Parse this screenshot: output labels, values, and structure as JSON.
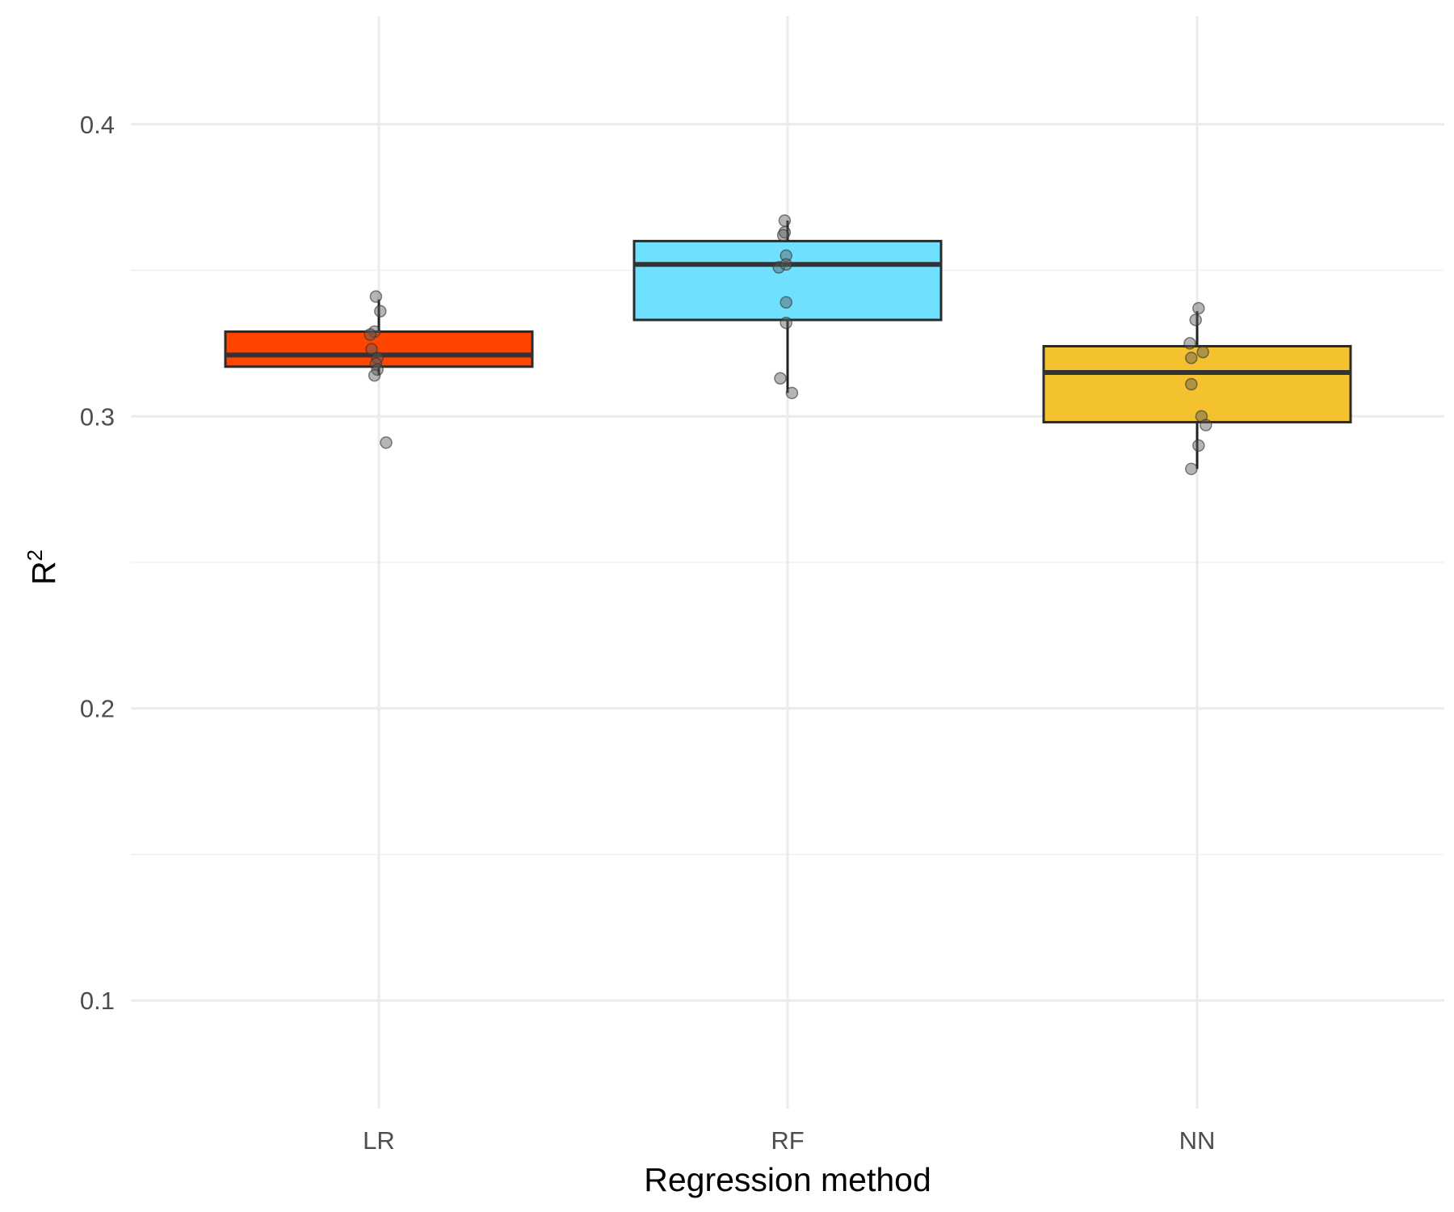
{
  "chart_data": {
    "type": "box",
    "title": "",
    "xlabel": "Regression method",
    "ylabel": "R",
    "ylabel_superscript": "2",
    "ylim": [
      0.063,
      0.437
    ],
    "y_ticks": [
      0.1,
      0.2,
      0.3,
      0.4
    ],
    "y_tick_labels": [
      "0.1",
      "0.2",
      "0.3",
      "0.4"
    ],
    "y_minor_ticks": [
      0.15,
      0.25,
      0.35
    ],
    "grid": true,
    "legend": "none",
    "categories": [
      "LR",
      "RF",
      "NN"
    ],
    "colors": {
      "LR": "#ff4500",
      "RF": "#70e0ff",
      "NN": "#f5c22f"
    },
    "boxes": [
      {
        "name": "LR",
        "whisker_low": 0.314,
        "q1": 0.317,
        "median": 0.321,
        "q3": 0.329,
        "whisker_high": 0.34
      },
      {
        "name": "RF",
        "whisker_low": 0.308,
        "q1": 0.333,
        "median": 0.352,
        "q3": 0.36,
        "whisker_high": 0.367
      },
      {
        "name": "NN",
        "whisker_low": 0.282,
        "q1": 0.298,
        "median": 0.315,
        "q3": 0.324,
        "whisker_high": 0.336
      }
    ],
    "points": [
      {
        "category": "LR",
        "jitter": -0.02,
        "value": 0.341
      },
      {
        "category": "LR",
        "jitter": 0.01,
        "value": 0.336
      },
      {
        "category": "LR",
        "jitter": -0.03,
        "value": 0.329
      },
      {
        "category": "LR",
        "jitter": -0.06,
        "value": 0.328
      },
      {
        "category": "LR",
        "jitter": -0.05,
        "value": 0.323
      },
      {
        "category": "LR",
        "jitter": -0.01,
        "value": 0.32
      },
      {
        "category": "LR",
        "jitter": -0.02,
        "value": 0.318
      },
      {
        "category": "LR",
        "jitter": -0.01,
        "value": 0.316
      },
      {
        "category": "LR",
        "jitter": -0.03,
        "value": 0.314
      },
      {
        "category": "LR",
        "jitter": 0.05,
        "value": 0.291
      },
      {
        "category": "RF",
        "jitter": -0.02,
        "value": 0.367
      },
      {
        "category": "RF",
        "jitter": -0.02,
        "value": 0.363
      },
      {
        "category": "RF",
        "jitter": -0.03,
        "value": 0.362
      },
      {
        "category": "RF",
        "jitter": -0.01,
        "value": 0.355
      },
      {
        "category": "RF",
        "jitter": -0.06,
        "value": 0.351
      },
      {
        "category": "RF",
        "jitter": -0.01,
        "value": 0.352
      },
      {
        "category": "RF",
        "jitter": -0.01,
        "value": 0.339
      },
      {
        "category": "RF",
        "jitter": -0.01,
        "value": 0.332
      },
      {
        "category": "RF",
        "jitter": -0.05,
        "value": 0.313
      },
      {
        "category": "RF",
        "jitter": 0.03,
        "value": 0.308
      },
      {
        "category": "NN",
        "jitter": 0.01,
        "value": 0.337
      },
      {
        "category": "NN",
        "jitter": -0.01,
        "value": 0.333
      },
      {
        "category": "NN",
        "jitter": -0.05,
        "value": 0.325
      },
      {
        "category": "NN",
        "jitter": 0.04,
        "value": 0.322
      },
      {
        "category": "NN",
        "jitter": -0.04,
        "value": 0.32
      },
      {
        "category": "NN",
        "jitter": -0.04,
        "value": 0.311
      },
      {
        "category": "NN",
        "jitter": 0.03,
        "value": 0.3
      },
      {
        "category": "NN",
        "jitter": 0.06,
        "value": 0.297
      },
      {
        "category": "NN",
        "jitter": 0.01,
        "value": 0.29
      },
      {
        "category": "NN",
        "jitter": -0.04,
        "value": 0.282
      }
    ]
  }
}
